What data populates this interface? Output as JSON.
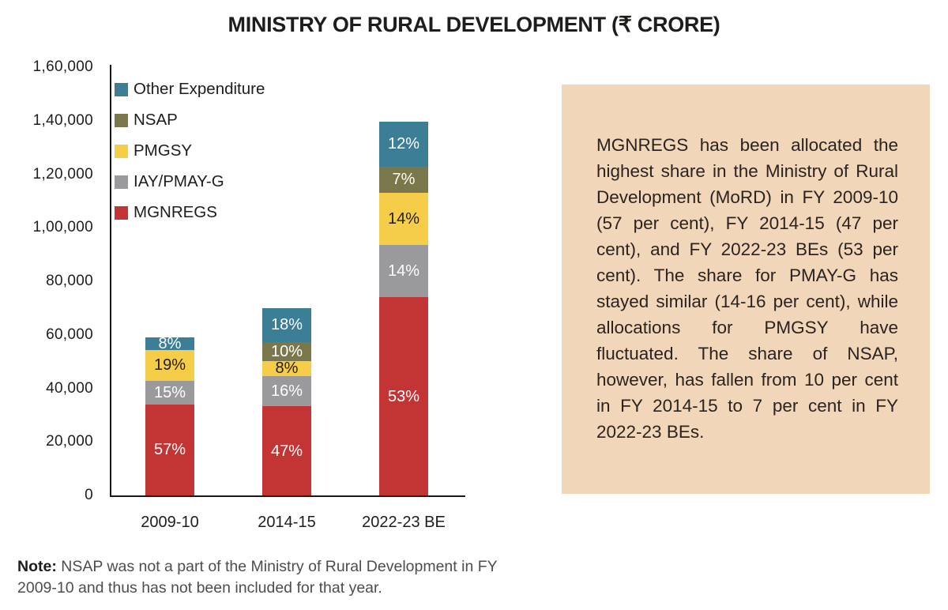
{
  "title": "MINISTRY OF RURAL DEVELOPMENT (₹ CRORE)",
  "chart_data": {
    "type": "bar",
    "subtype": "stacked-percent-labeled",
    "categories": [
      "2009-10",
      "2014-15",
      "2022-23 BE"
    ],
    "unit": "₹ crore",
    "totals_estimated_crore": [
      59600,
      70800,
      139700
    ],
    "series": [
      {
        "name": "MGNREGS",
        "color": "#c23534",
        "label_color": "#ffffff",
        "percent": [
          57,
          47,
          53
        ]
      },
      {
        "name": "IAY/PMAY-G",
        "color": "#9a9a9c",
        "label_color": "#ffffff",
        "percent": [
          15,
          16,
          14
        ]
      },
      {
        "name": "PMGSY",
        "color": "#f6cd48",
        "label_color": "#1d1d1b",
        "percent": [
          19,
          8,
          14
        ]
      },
      {
        "name": "NSAP",
        "color": "#7a784a",
        "label_color": "#ffffff",
        "percent": [
          null,
          10,
          7
        ]
      },
      {
        "name": "Other Expenditure",
        "color": "#3c7e95",
        "label_color": "#ffffff",
        "percent": [
          8,
          18,
          12
        ]
      }
    ],
    "legend_order_top_to_bottom": [
      "Other Expenditure",
      "NSAP",
      "PMGSY",
      "IAY/PMAY-G",
      "MGNREGS"
    ],
    "ylim": [
      0,
      160000
    ],
    "yticks": [
      {
        "value": 0,
        "label": "0"
      },
      {
        "value": 20000,
        "label": "20,000"
      },
      {
        "value": 40000,
        "label": "40,000"
      },
      {
        "value": 60000,
        "label": "60,000"
      },
      {
        "value": 80000,
        "label": "80,000"
      },
      {
        "value": 100000,
        "label": "1,00,000"
      },
      {
        "value": 120000,
        "label": "1,20,000"
      },
      {
        "value": 140000,
        "label": "1,40,000"
      },
      {
        "value": 160000,
        "label": "1,60,000"
      }
    ],
    "grid": false,
    "legend_position": "inside-top-left"
  },
  "annotation_box": {
    "background": "#f2d6ba",
    "text": "MGNREGS has been allocated the highest share in the Ministry of Rural Development (MoRD) in FY 2009-10 (57 per cent), FY 2014-15 (47 per cent), and FY 2022-23 BEs (53 per cent). The share for PMAY-G has stayed similar (14-16 per cent), while allocations for PMGSY have fluctuated. The share of NSAP, however, has fallen from 10 per cent in FY 2014-15 to 7 per cent in FY 2022-23 BEs."
  },
  "note": {
    "label": "Note:",
    "text": " NSAP was not a part of the Ministry of Rural Development in FY 2009-10 and thus has not been included for that year."
  }
}
